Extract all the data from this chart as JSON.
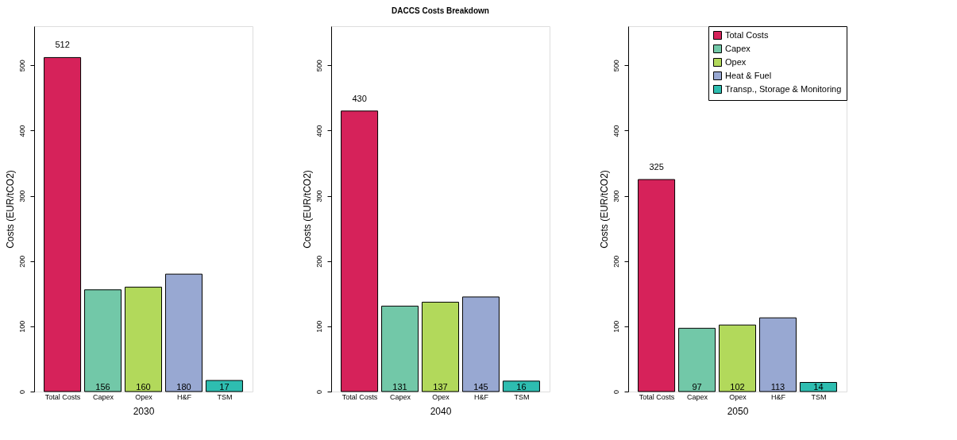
{
  "chart_data": [
    {
      "type": "bar",
      "xlabel": "2030",
      "ylabel": "Costs (EUR/tCO2)",
      "categories": [
        "Total Costs",
        "Capex",
        "Opex",
        "H&F",
        "TSM"
      ],
      "series": [
        {
          "color": "#d6225a",
          "values": [
            512,
            null,
            null,
            null,
            null
          ]
        },
        {
          "color": "#72c8a8",
          "values": [
            null,
            156,
            null,
            null,
            null
          ]
        },
        {
          "color": "#b2d95b",
          "values": [
            null,
            null,
            160,
            null,
            null
          ]
        },
        {
          "color": "#98a8d2",
          "values": [
            null,
            null,
            null,
            180,
            null
          ]
        },
        {
          "color": "#2ebdb0",
          "values": [
            null,
            null,
            null,
            null,
            17
          ]
        }
      ],
      "ylim": [
        0,
        560
      ],
      "yticks": [
        0,
        100,
        200,
        300,
        400,
        500
      ],
      "data_labels": true,
      "grid": false,
      "legend": false
    },
    {
      "type": "bar",
      "title": "DACCS Costs Breakdown",
      "xlabel": "2040",
      "ylabel": "Costs (EUR/tCO2)",
      "categories": [
        "Total Costs",
        "Capex",
        "Opex",
        "H&F",
        "TSM"
      ],
      "series": [
        {
          "color": "#d6225a",
          "values": [
            430,
            null,
            null,
            null,
            null
          ]
        },
        {
          "color": "#72c8a8",
          "values": [
            null,
            131,
            null,
            null,
            null
          ]
        },
        {
          "color": "#b2d95b",
          "values": [
            null,
            null,
            137,
            null,
            null
          ]
        },
        {
          "color": "#98a8d2",
          "values": [
            null,
            null,
            null,
            145,
            null
          ]
        },
        {
          "color": "#2ebdb0",
          "values": [
            null,
            null,
            null,
            null,
            16
          ]
        }
      ],
      "ylim": [
        0,
        560
      ],
      "yticks": [
        0,
        100,
        200,
        300,
        400,
        500
      ],
      "data_labels": true,
      "grid": false,
      "legend": false
    },
    {
      "type": "bar",
      "xlabel": "2050",
      "ylabel": "Costs (EUR/tCO2)",
      "categories": [
        "Total Costs",
        "Capex",
        "Opex",
        "H&F",
        "TSM"
      ],
      "series": [
        {
          "name": "Total Costs",
          "color": "#d6225a",
          "values": [
            325,
            null,
            null,
            null,
            null
          ]
        },
        {
          "name": "Capex",
          "color": "#72c8a8",
          "values": [
            null,
            97,
            null,
            null,
            null
          ]
        },
        {
          "name": "Opex",
          "color": "#b2d95b",
          "values": [
            null,
            null,
            102,
            null,
            null
          ]
        },
        {
          "name": "Heat & Fuel",
          "color": "#98a8d2",
          "values": [
            null,
            null,
            null,
            113,
            null
          ]
        },
        {
          "name": "Transp., Storage & Monitoring",
          "color": "#2ebdb0",
          "values": [
            null,
            null,
            null,
            null,
            14
          ]
        }
      ],
      "ylim": [
        0,
        560
      ],
      "yticks": [
        0,
        100,
        200,
        300,
        400,
        500
      ],
      "data_labels": true,
      "grid": false,
      "legend": "top right"
    }
  ]
}
